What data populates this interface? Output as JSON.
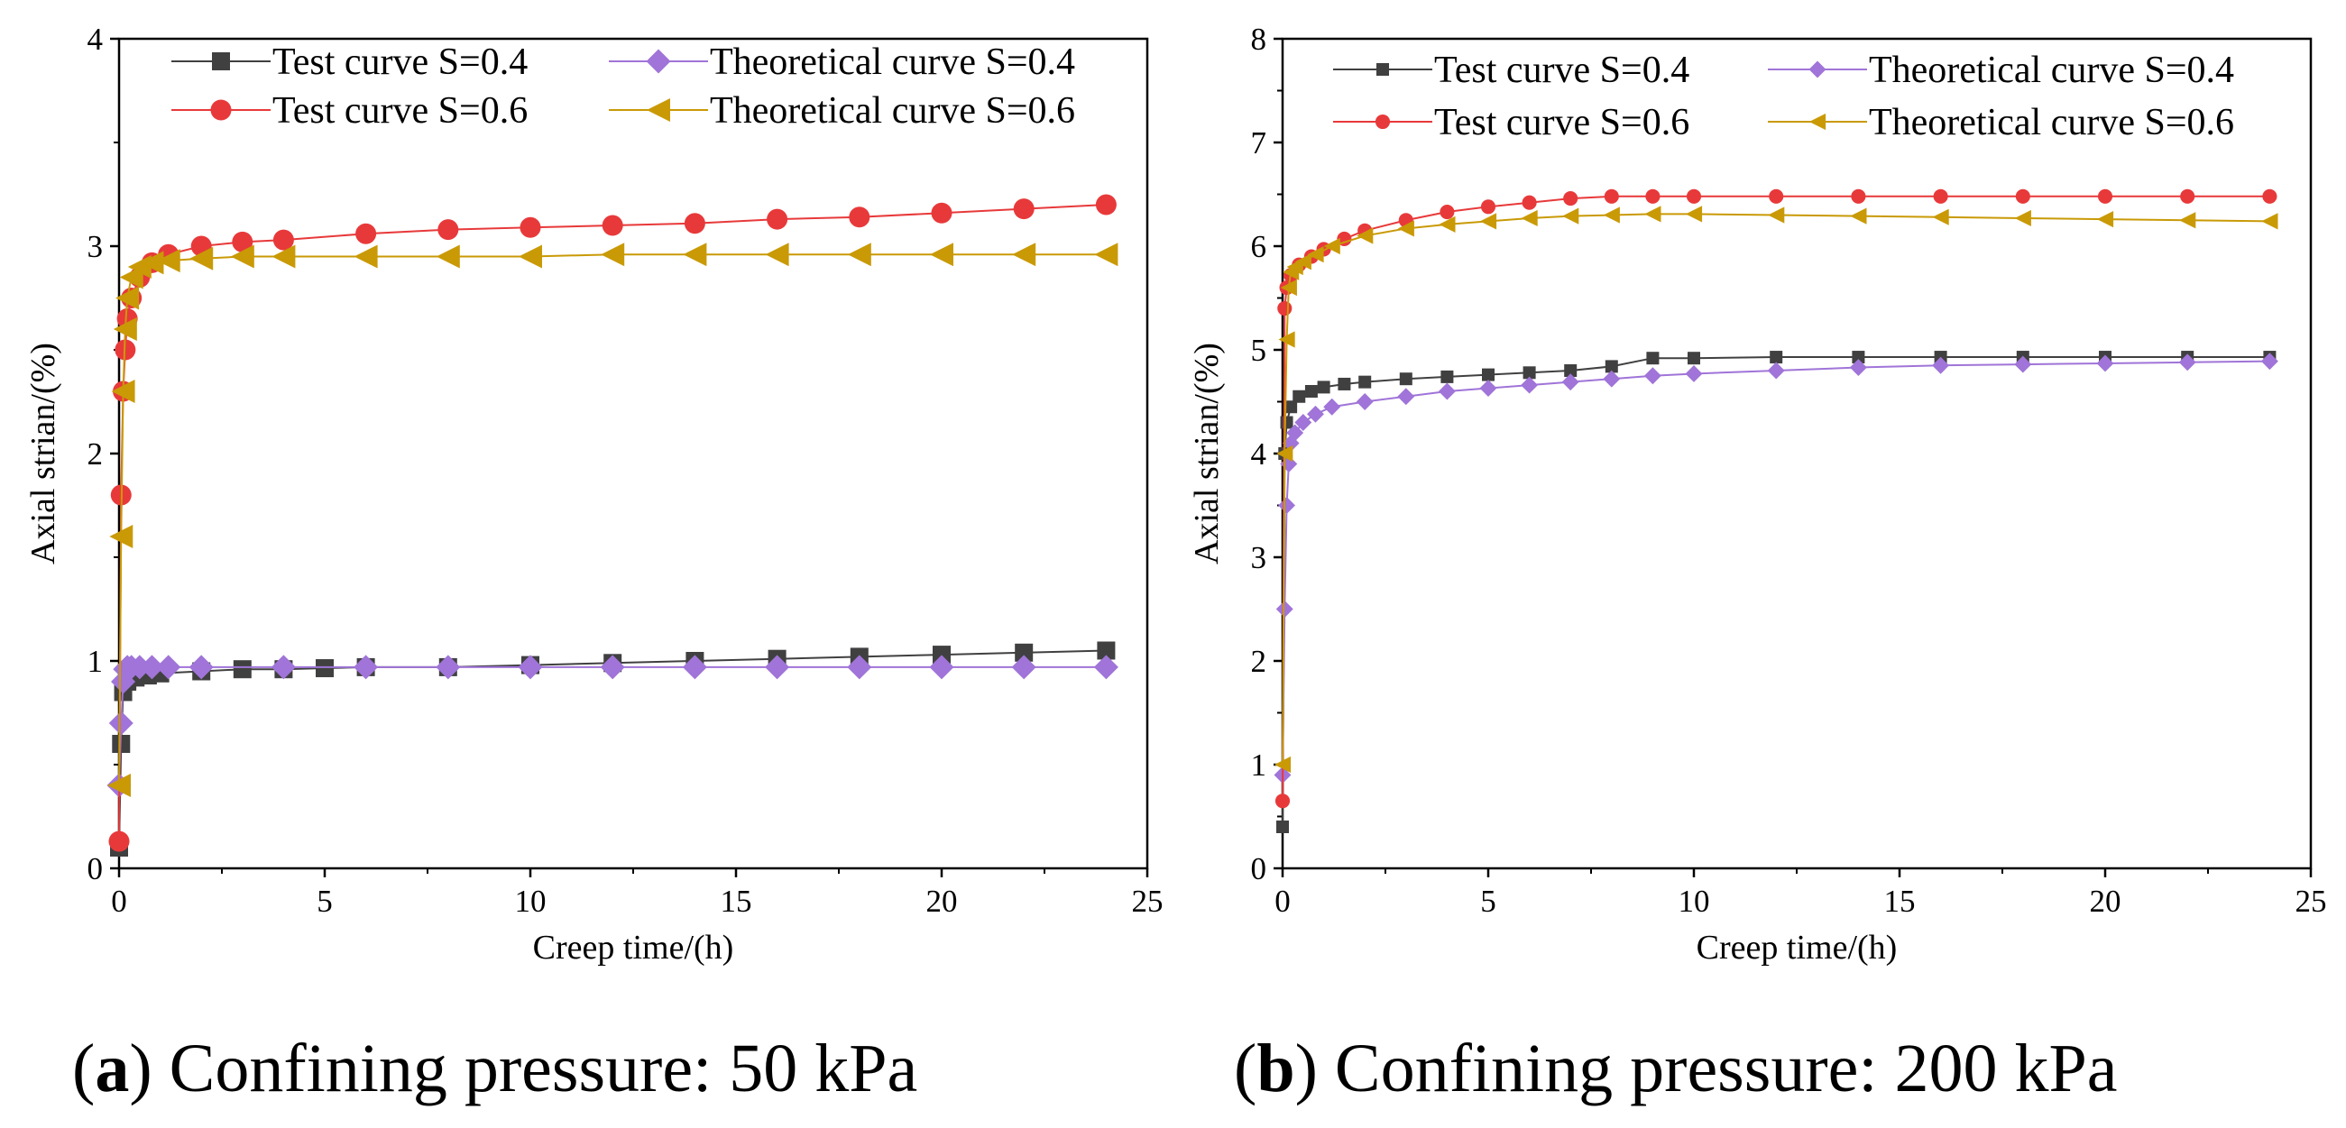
{
  "captions": [
    {
      "letter": "a",
      "text": "Confining pressure: 50 kPa"
    },
    {
      "letter": "b",
      "text": "Confining pressure: 200 kPa"
    }
  ],
  "colors": {
    "test_s04": "#404040",
    "theory_s04": "#a074d8",
    "test_s06": "#e8393a",
    "theory_s06": "#c99a06"
  },
  "chart_data": [
    {
      "type": "line",
      "panel": "a",
      "title": "",
      "xlabel": "Creep time/(h)",
      "ylabel": "Axial strian/(%)",
      "xlim": [
        0,
        25
      ],
      "ylim": [
        0,
        4
      ],
      "xticks": [
        "0",
        "5",
        "10",
        "15",
        "20",
        "25"
      ],
      "yticks": [
        "0",
        "1",
        "2",
        "3",
        "4"
      ],
      "legend_position": "top",
      "series": [
        {
          "name": "Test curve S=0.4",
          "marker": "square",
          "color": "#404040",
          "x": [
            0,
            0.05,
            0.1,
            0.2,
            0.4,
            0.7,
            1,
            2,
            3,
            4,
            5,
            6,
            8,
            10,
            12,
            14,
            16,
            18,
            20,
            22,
            24
          ],
          "y": [
            0.1,
            0.6,
            0.85,
            0.9,
            0.92,
            0.93,
            0.94,
            0.95,
            0.96,
            0.96,
            0.965,
            0.97,
            0.97,
            0.98,
            0.99,
            1.0,
            1.01,
            1.02,
            1.03,
            1.04,
            1.05
          ]
        },
        {
          "name": "Theoretical curve S=0.4",
          "marker": "diamond",
          "color": "#a074d8",
          "x": [
            0,
            0.05,
            0.1,
            0.15,
            0.2,
            0.3,
            0.5,
            0.8,
            1.2,
            2,
            4,
            6,
            8,
            10,
            12,
            14,
            16,
            18,
            20,
            22,
            24
          ],
          "y": [
            0.4,
            0.7,
            0.9,
            0.96,
            0.97,
            0.97,
            0.97,
            0.97,
            0.97,
            0.97,
            0.97,
            0.97,
            0.97,
            0.97,
            0.97,
            0.97,
            0.97,
            0.97,
            0.97,
            0.97,
            0.97
          ]
        },
        {
          "name": "Test curve S=0.6",
          "marker": "circle",
          "color": "#e8393a",
          "x": [
            0,
            0.05,
            0.1,
            0.15,
            0.2,
            0.3,
            0.5,
            0.8,
            1.2,
            2,
            3,
            4,
            6,
            8,
            10,
            12,
            14,
            16,
            18,
            20,
            22,
            24
          ],
          "y": [
            0.13,
            1.8,
            2.3,
            2.5,
            2.65,
            2.75,
            2.85,
            2.92,
            2.96,
            3.0,
            3.02,
            3.03,
            3.06,
            3.08,
            3.09,
            3.1,
            3.11,
            3.13,
            3.14,
            3.16,
            3.18,
            3.2
          ]
        },
        {
          "name": "Theoretical curve S=0.6",
          "marker": "triangle-left",
          "color": "#c99a06",
          "x": [
            0,
            0.05,
            0.1,
            0.15,
            0.2,
            0.3,
            0.5,
            0.8,
            1.2,
            2,
            3,
            4,
            6,
            8,
            10,
            12,
            14,
            16,
            18,
            20,
            22,
            24
          ],
          "y": [
            0.4,
            1.6,
            2.3,
            2.6,
            2.75,
            2.85,
            2.9,
            2.92,
            2.93,
            2.94,
            2.95,
            2.95,
            2.95,
            2.95,
            2.95,
            2.96,
            2.96,
            2.96,
            2.96,
            2.96,
            2.96,
            2.96
          ]
        }
      ]
    },
    {
      "type": "line",
      "panel": "b",
      "title": "",
      "xlabel": "Creep time/(h)",
      "ylabel": "Axial strian/(%)",
      "xlim": [
        0,
        25
      ],
      "ylim": [
        0,
        8
      ],
      "xticks": [
        "0",
        "5",
        "10",
        "15",
        "20",
        "25"
      ],
      "yticks": [
        "0",
        "1",
        "2",
        "3",
        "4",
        "5",
        "6",
        "7",
        "8"
      ],
      "legend_position": "top",
      "series": [
        {
          "name": "Test curve S=0.4",
          "marker": "square",
          "color": "#404040",
          "x": [
            0,
            0.05,
            0.1,
            0.2,
            0.4,
            0.7,
            1,
            1.5,
            2,
            3,
            4,
            5,
            6,
            7,
            8,
            9,
            10,
            12,
            14,
            16,
            18,
            20,
            22,
            24
          ],
          "y": [
            0.4,
            4.0,
            4.3,
            4.45,
            4.55,
            4.6,
            4.64,
            4.67,
            4.69,
            4.72,
            4.74,
            4.76,
            4.78,
            4.8,
            4.84,
            4.92,
            4.92,
            4.93,
            4.93,
            4.93,
            4.93,
            4.93,
            4.93,
            4.93
          ]
        },
        {
          "name": "Theoretical curve S=0.4",
          "marker": "diamond",
          "color": "#a074d8",
          "x": [
            0,
            0.05,
            0.1,
            0.15,
            0.2,
            0.3,
            0.5,
            0.8,
            1.2,
            2,
            3,
            4,
            5,
            6,
            7,
            8,
            9,
            10,
            12,
            14,
            16,
            18,
            20,
            22,
            24
          ],
          "y": [
            0.9,
            2.5,
            3.5,
            3.9,
            4.1,
            4.2,
            4.3,
            4.38,
            4.45,
            4.5,
            4.55,
            4.6,
            4.63,
            4.66,
            4.69,
            4.72,
            4.75,
            4.77,
            4.8,
            4.83,
            4.85,
            4.86,
            4.87,
            4.88,
            4.89
          ]
        },
        {
          "name": "Test curve S=0.6",
          "marker": "circle",
          "color": "#e8393a",
          "x": [
            0,
            0.05,
            0.1,
            0.2,
            0.4,
            0.7,
            1,
            1.5,
            2,
            3,
            4,
            5,
            6,
            7,
            8,
            9,
            10,
            12,
            14,
            16,
            18,
            20,
            22,
            24
          ],
          "y": [
            0.65,
            5.4,
            5.6,
            5.72,
            5.82,
            5.9,
            5.97,
            6.07,
            6.15,
            6.25,
            6.33,
            6.38,
            6.42,
            6.46,
            6.48,
            6.48,
            6.48,
            6.48,
            6.48,
            6.48,
            6.48,
            6.48,
            6.48,
            6.48
          ]
        },
        {
          "name": "Theoretical curve S=0.6",
          "marker": "triangle-left",
          "color": "#c99a06",
          "x": [
            0,
            0.05,
            0.1,
            0.15,
            0.2,
            0.3,
            0.5,
            0.8,
            1.2,
            2,
            3,
            4,
            5,
            6,
            7,
            8,
            9,
            10,
            12,
            14,
            16,
            18,
            20,
            22,
            24
          ],
          "y": [
            1.0,
            4.0,
            5.1,
            5.6,
            5.75,
            5.8,
            5.85,
            5.92,
            6.0,
            6.1,
            6.17,
            6.21,
            6.24,
            6.27,
            6.29,
            6.3,
            6.31,
            6.31,
            6.3,
            6.29,
            6.28,
            6.27,
            6.26,
            6.25,
            6.24
          ]
        }
      ]
    }
  ]
}
